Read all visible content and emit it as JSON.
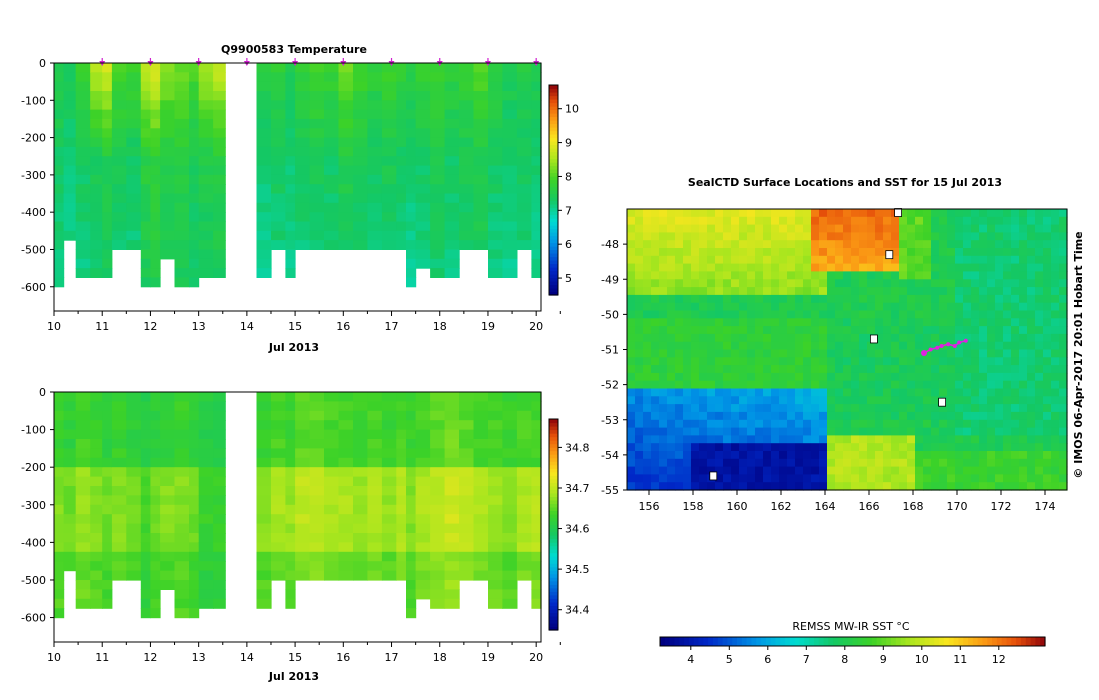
{
  "chart_data": [
    {
      "type": "heatmap",
      "title": "Q9900583  Temperature",
      "xlabel": "Jul 2013",
      "ylabel": "",
      "xlim": [
        10,
        20.1
      ],
      "ylim": [
        -665,
        0
      ],
      "x_ticks": [
        "10",
        "11",
        "12",
        "13",
        "14",
        "15",
        "16",
        "17",
        "18",
        "19",
        "20"
      ],
      "y_ticks": [
        "0",
        "-100",
        "-200",
        "-300",
        "-400",
        "-500",
        "-600"
      ],
      "colorbar": {
        "ticks": [
          "5",
          "6",
          "7",
          "8",
          "9",
          "10"
        ],
        "range": [
          4.5,
          10.7
        ]
      },
      "surfacing_markers": [
        11,
        12,
        13,
        14,
        15,
        16,
        17,
        18,
        19,
        20
      ],
      "profiles": [
        {
          "t": 10.0,
          "w": 0.2,
          "max_depth": 580,
          "base": 7.3,
          "surf": 7.6
        },
        {
          "t": 10.2,
          "w": 0.25,
          "max_depth": 460,
          "base": 7.2,
          "surf": 7.4
        },
        {
          "t": 10.45,
          "w": 0.3,
          "max_depth": 575,
          "base": 7.3,
          "surf": 7.8
        },
        {
          "t": 10.75,
          "w": 0.25,
          "max_depth": 575,
          "base": 7.4,
          "surf": 8.6
        },
        {
          "t": 11.0,
          "w": 0.2,
          "max_depth": 565,
          "base": 7.5,
          "surf": 8.8
        },
        {
          "t": 11.2,
          "w": 0.3,
          "max_depth": 500,
          "base": 7.4,
          "surf": 8.0
        },
        {
          "t": 11.5,
          "w": 0.3,
          "max_depth": 500,
          "base": 7.3,
          "surf": 7.9
        },
        {
          "t": 11.8,
          "w": 0.2,
          "max_depth": 600,
          "base": 7.6,
          "surf": 8.7
        },
        {
          "t": 12.0,
          "w": 0.2,
          "max_depth": 600,
          "base": 7.7,
          "surf": 8.9
        },
        {
          "t": 12.2,
          "w": 0.3,
          "max_depth": 505,
          "base": 7.5,
          "surf": 8.4
        },
        {
          "t": 12.5,
          "w": 0.3,
          "max_depth": 580,
          "base": 7.6,
          "surf": 8.2
        },
        {
          "t": 12.8,
          "w": 0.2,
          "max_depth": 580,
          "base": 7.4,
          "surf": 8.0
        },
        {
          "t": 13.0,
          "w": 0.3,
          "max_depth": 570,
          "base": 7.5,
          "surf": 8.5
        },
        {
          "t": 13.3,
          "w": 0.25,
          "max_depth": 570,
          "base": 7.6,
          "surf": 8.7
        },
        {
          "t": 14.2,
          "w": 0.3,
          "max_depth": 555,
          "base": 7.2,
          "surf": 7.6
        },
        {
          "t": 14.5,
          "w": 0.3,
          "max_depth": 500,
          "base": 7.3,
          "surf": 7.7
        },
        {
          "t": 14.8,
          "w": 0.2,
          "max_depth": 555,
          "base": 7.2,
          "surf": 7.5
        },
        {
          "t": 15.0,
          "w": 0.3,
          "max_depth": 500,
          "base": 7.3,
          "surf": 7.8
        },
        {
          "t": 15.3,
          "w": 0.3,
          "max_depth": 500,
          "base": 7.4,
          "surf": 7.9
        },
        {
          "t": 15.6,
          "w": 0.3,
          "max_depth": 500,
          "base": 7.3,
          "surf": 7.8
        },
        {
          "t": 15.9,
          "w": 0.3,
          "max_depth": 500,
          "base": 7.5,
          "surf": 8.2
        },
        {
          "t": 16.2,
          "w": 0.3,
          "max_depth": 500,
          "base": 7.4,
          "surf": 7.9
        },
        {
          "t": 16.5,
          "w": 0.3,
          "max_depth": 500,
          "base": 7.3,
          "surf": 7.7
        },
        {
          "t": 16.8,
          "w": 0.3,
          "max_depth": 500,
          "base": 7.4,
          "surf": 7.9
        },
        {
          "t": 17.1,
          "w": 0.2,
          "max_depth": 500,
          "base": 7.3,
          "surf": 7.7
        },
        {
          "t": 17.3,
          "w": 0.2,
          "max_depth": 585,
          "base": 7.2,
          "surf": 7.6
        },
        {
          "t": 17.5,
          "w": 0.3,
          "max_depth": 540,
          "base": 7.3,
          "surf": 7.8
        },
        {
          "t": 17.8,
          "w": 0.3,
          "max_depth": 555,
          "base": 7.4,
          "surf": 7.9
        },
        {
          "t": 18.1,
          "w": 0.3,
          "max_depth": 555,
          "base": 7.3,
          "surf": 7.7
        },
        {
          "t": 18.4,
          "w": 0.3,
          "max_depth": 500,
          "base": 7.4,
          "surf": 7.8
        },
        {
          "t": 18.7,
          "w": 0.3,
          "max_depth": 500,
          "base": 7.5,
          "surf": 8.0
        },
        {
          "t": 19.0,
          "w": 0.3,
          "max_depth": 560,
          "base": 7.3,
          "surf": 7.7
        },
        {
          "t": 19.3,
          "w": 0.3,
          "max_depth": 565,
          "base": 7.2,
          "surf": 7.5
        },
        {
          "t": 19.6,
          "w": 0.3,
          "max_depth": 500,
          "base": 7.3,
          "surf": 7.6
        },
        {
          "t": 19.9,
          "w": 0.2,
          "max_depth": 565,
          "base": 7.2,
          "surf": 7.5
        }
      ]
    },
    {
      "type": "heatmap",
      "title": "",
      "xlabel": "Jul 2013",
      "ylabel": "",
      "xlim": [
        10,
        20.1
      ],
      "ylim": [
        -665,
        0
      ],
      "x_ticks": [
        "10",
        "11",
        "12",
        "13",
        "14",
        "15",
        "16",
        "17",
        "18",
        "19",
        "20"
      ],
      "y_ticks": [
        "0",
        "-100",
        "-200",
        "-300",
        "-400",
        "-500",
        "-600"
      ],
      "colorbar": {
        "ticks": [
          "34.4",
          "34.5",
          "34.6",
          "34.7",
          "34.8"
        ],
        "range": [
          34.35,
          34.87
        ]
      },
      "profiles": [
        {
          "t": 10.0,
          "w": 0.2,
          "max_depth": 580,
          "base": 34.63,
          "mid": 34.67
        },
        {
          "t": 10.2,
          "w": 0.25,
          "max_depth": 460,
          "base": 34.62,
          "mid": 34.66
        },
        {
          "t": 10.45,
          "w": 0.3,
          "max_depth": 575,
          "base": 34.64,
          "mid": 34.68
        },
        {
          "t": 10.75,
          "w": 0.25,
          "max_depth": 575,
          "base": 34.63,
          "mid": 34.67
        },
        {
          "t": 11.0,
          "w": 0.2,
          "max_depth": 565,
          "base": 34.62,
          "mid": 34.66
        },
        {
          "t": 11.2,
          "w": 0.3,
          "max_depth": 500,
          "base": 34.63,
          "mid": 34.67
        },
        {
          "t": 11.5,
          "w": 0.3,
          "max_depth": 500,
          "base": 34.62,
          "mid": 34.66
        },
        {
          "t": 11.8,
          "w": 0.2,
          "max_depth": 600,
          "base": 34.61,
          "mid": 34.64
        },
        {
          "t": 12.0,
          "w": 0.2,
          "max_depth": 600,
          "base": 34.62,
          "mid": 34.66
        },
        {
          "t": 12.2,
          "w": 0.3,
          "max_depth": 505,
          "base": 34.62,
          "mid": 34.67
        },
        {
          "t": 12.5,
          "w": 0.3,
          "max_depth": 580,
          "base": 34.63,
          "mid": 34.67
        },
        {
          "t": 12.8,
          "w": 0.2,
          "max_depth": 580,
          "base": 34.62,
          "mid": 34.66
        },
        {
          "t": 13.0,
          "w": 0.3,
          "max_depth": 570,
          "base": 34.61,
          "mid": 34.63
        },
        {
          "t": 13.3,
          "w": 0.25,
          "max_depth": 570,
          "base": 34.61,
          "mid": 34.63
        },
        {
          "t": 14.2,
          "w": 0.3,
          "max_depth": 555,
          "base": 34.63,
          "mid": 34.67
        },
        {
          "t": 14.5,
          "w": 0.3,
          "max_depth": 500,
          "base": 34.64,
          "mid": 34.69
        },
        {
          "t": 14.8,
          "w": 0.2,
          "max_depth": 555,
          "base": 34.63,
          "mid": 34.68
        },
        {
          "t": 15.0,
          "w": 0.3,
          "max_depth": 500,
          "base": 34.65,
          "mid": 34.7
        },
        {
          "t": 15.3,
          "w": 0.3,
          "max_depth": 500,
          "base": 34.65,
          "mid": 34.7
        },
        {
          "t": 15.6,
          "w": 0.3,
          "max_depth": 500,
          "base": 34.64,
          "mid": 34.69
        },
        {
          "t": 15.9,
          "w": 0.3,
          "max_depth": 500,
          "base": 34.64,
          "mid": 34.69
        },
        {
          "t": 16.2,
          "w": 0.3,
          "max_depth": 500,
          "base": 34.63,
          "mid": 34.68
        },
        {
          "t": 16.5,
          "w": 0.3,
          "max_depth": 500,
          "base": 34.64,
          "mid": 34.69
        },
        {
          "t": 16.8,
          "w": 0.3,
          "max_depth": 500,
          "base": 34.63,
          "mid": 34.68
        },
        {
          "t": 17.1,
          "w": 0.2,
          "max_depth": 500,
          "base": 34.64,
          "mid": 34.69
        },
        {
          "t": 17.3,
          "w": 0.2,
          "max_depth": 585,
          "base": 34.63,
          "mid": 34.67
        },
        {
          "t": 17.5,
          "w": 0.3,
          "max_depth": 540,
          "base": 34.64,
          "mid": 34.69
        },
        {
          "t": 17.8,
          "w": 0.3,
          "max_depth": 555,
          "base": 34.65,
          "mid": 34.7
        },
        {
          "t": 18.1,
          "w": 0.3,
          "max_depth": 555,
          "base": 34.66,
          "mid": 34.71
        },
        {
          "t": 18.4,
          "w": 0.3,
          "max_depth": 500,
          "base": 34.65,
          "mid": 34.7
        },
        {
          "t": 18.7,
          "w": 0.3,
          "max_depth": 500,
          "base": 34.64,
          "mid": 34.69
        },
        {
          "t": 19.0,
          "w": 0.3,
          "max_depth": 560,
          "base": 34.64,
          "mid": 34.68
        },
        {
          "t": 19.3,
          "w": 0.3,
          "max_depth": 565,
          "base": 34.63,
          "mid": 34.67
        },
        {
          "t": 19.6,
          "w": 0.3,
          "max_depth": 500,
          "base": 34.64,
          "mid": 34.69
        },
        {
          "t": 19.9,
          "w": 0.2,
          "max_depth": 565,
          "base": 34.64,
          "mid": 34.7
        }
      ]
    },
    {
      "type": "heatmap",
      "title": "SealCTD Surface Locations and SST for 15 Jul 2013",
      "xlabel": "",
      "ylabel": "",
      "xlim": [
        155,
        175
      ],
      "ylim": [
        -55,
        -47
      ],
      "x_ticks": [
        "156",
        "158",
        "160",
        "162",
        "164",
        "166",
        "168",
        "170",
        "172",
        "174"
      ],
      "y_ticks": [
        "-48",
        "-49",
        "-50",
        "-51",
        "-52",
        "-53",
        "-54",
        "-55"
      ],
      "colorbar": {
        "label": "REMSS MW-IR SST °C",
        "ticks": [
          "4",
          "5",
          "6",
          "7",
          "8",
          "9",
          "10",
          "11",
          "12"
        ],
        "range": [
          3.2,
          13.2
        ]
      },
      "credit": "© IMOS 06-Apr-2017 20:01 Hobart Time",
      "seal_track": {
        "lon": [
          168.5,
          168.8,
          169.1,
          169.3,
          169.6,
          169.9,
          170.1,
          170.4
        ],
        "lat": [
          -51.1,
          -51.0,
          -50.95,
          -50.9,
          -50.85,
          -50.9,
          -50.8,
          -50.75
        ]
      }
    }
  ]
}
